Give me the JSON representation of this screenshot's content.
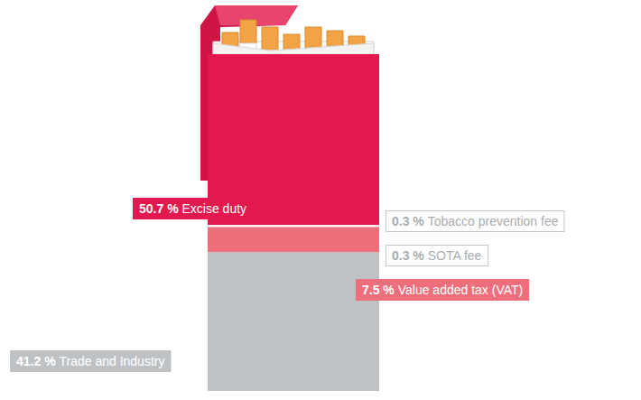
{
  "chart_data": {
    "type": "bar",
    "stacked": true,
    "data_labels": true,
    "tick_labels": false,
    "categories": [
      null
    ],
    "ylim": [
      0,
      100
    ],
    "series": [
      {
        "name": "Trade and Industry",
        "color": "#bfc2c5",
        "values": [
          41.2
        ],
        "value_labels": [
          "41.2 %"
        ]
      },
      {
        "name": "Value added tax (VAT)",
        "color": "#ee6f7b",
        "values": [
          7.5
        ],
        "value_labels": [
          "7.5 %"
        ]
      },
      {
        "name": "SOTA fee",
        "color": "#ffffff",
        "values": [
          0.3
        ],
        "value_labels": [
          "0.3 %"
        ]
      },
      {
        "name": "Tobacco prevention fee",
        "color": "#f1f1f1",
        "values": [
          0.3
        ],
        "value_labels": [
          "0.3 %"
        ]
      },
      {
        "name": "Excise duty",
        "color": "#e3184f",
        "values": [
          50.7
        ],
        "value_labels": [
          "50.7 %"
        ]
      }
    ]
  }
}
